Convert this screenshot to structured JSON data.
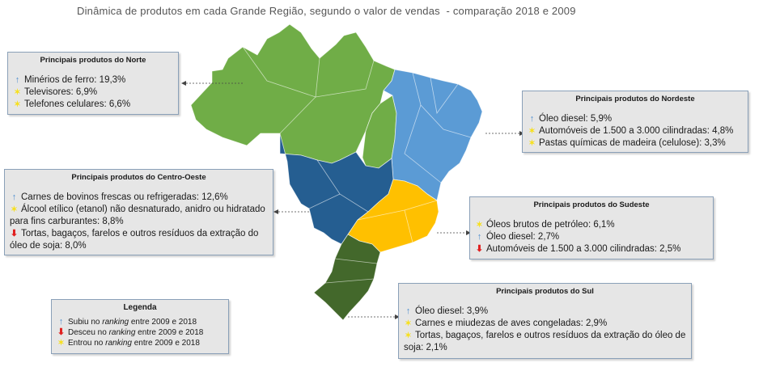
{
  "title": "Dinâmica de produtos em cada Grande Região, segundo o valor de vendas  - comparação 2018 e 2009",
  "colors": {
    "norte": "#70ad47",
    "nordeste": "#5b9bd5",
    "centro_oeste": "#255e91",
    "sudeste": "#ffc000",
    "sul": "#43682b",
    "up_arrow": "#4f8fcf",
    "down_arrow": "#e02020",
    "new_star": "#f7e01e"
  },
  "icons": {
    "up": "↑",
    "down": "⬇",
    "new": "✶"
  },
  "regions": {
    "norte": {
      "title": "Principais produtos do Norte",
      "items": [
        {
          "status": "up",
          "text": "Minérios de ferro:  19,3%"
        },
        {
          "status": "new",
          "text": "Televisores:  6,9%"
        },
        {
          "status": "new",
          "text": "Telefones celulares: 6,6%"
        }
      ]
    },
    "nordeste": {
      "title": "Principais produtos do Nordeste",
      "items": [
        {
          "status": "up",
          "text": "Óleo diesel: 5,9%"
        },
        {
          "status": "new",
          "text": "Automóveis de 1.500  a 3.000 cilindradas: 4,8%"
        },
        {
          "status": "new",
          "text": "Pastas químicas de madeira (celulose):  3,3%"
        }
      ]
    },
    "centro_oeste": {
      "title": "Principais produtos do Centro-Oeste",
      "items": [
        {
          "status": "up",
          "text": "Carnes de bovinos frescas ou refrigeradas: 12,6%"
        },
        {
          "status": "new",
          "text": "Álcool etílico (etanol) não desnaturado, anidro ou hidratado para fins carburantes: 8,8%"
        },
        {
          "status": "down",
          "text": "Tortas, bagaços, farelos e outros resíduos da extração do óleo de soja: 8,0%"
        }
      ]
    },
    "sudeste": {
      "title": "Principais produtos do Sudeste",
      "items": [
        {
          "status": "new",
          "text": "Óleos brutos de petróleo: 6,1%"
        },
        {
          "status": "up",
          "text": "Óleo diesel: 2,7%"
        },
        {
          "status": "down",
          "text": "Automóveis de 1.500  a 3.000 cilindradas: 2,5%"
        }
      ]
    },
    "sul": {
      "title": "Principais produtos do Sul",
      "items": [
        {
          "status": "up",
          "text": "Óleo diesel: 3,9%"
        },
        {
          "status": "new",
          "text": "Carnes e miudezas de aves congeladas: 2,9%"
        },
        {
          "status": "new",
          "text": "Tortas, bagaços, farelos e outros resíduos da extração do óleo de soja: 2,1%"
        }
      ]
    }
  },
  "legend": {
    "title": "Legenda",
    "items": [
      {
        "status": "up",
        "before": "Subiu no ",
        "emph": "ranking",
        "after": " entre 2009 e 2018"
      },
      {
        "status": "down",
        "before": "Desceu no ",
        "emph": "ranking",
        "after": " entre 2009 e 2018"
      },
      {
        "status": "new",
        "before": "Entrou no ",
        "emph": "ranking",
        "after": " entre 2009 e 2018"
      }
    ]
  }
}
